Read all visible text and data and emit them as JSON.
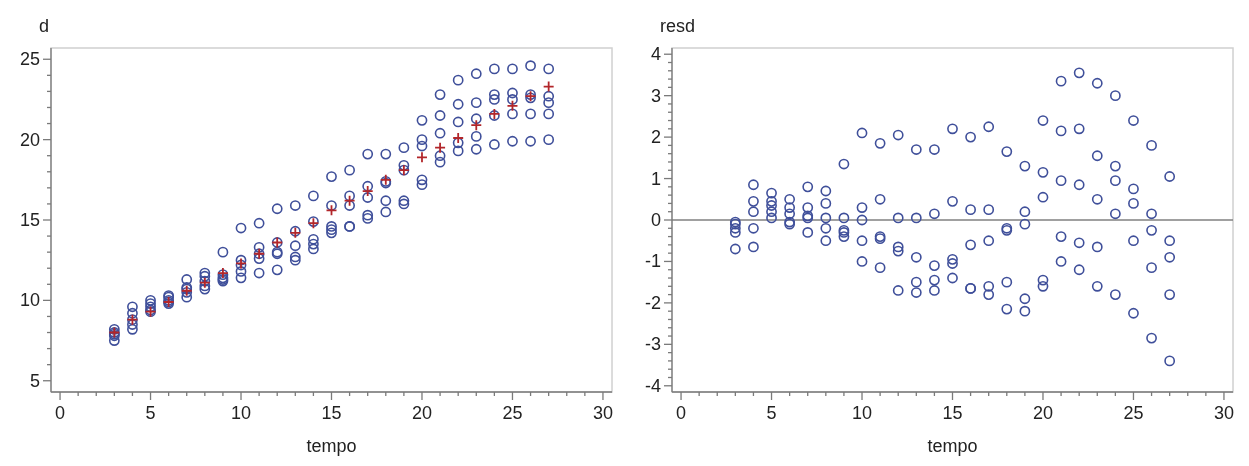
{
  "chart_data": [
    {
      "type": "scatter",
      "xlabel": "tempo",
      "ylabel": "d",
      "xlim": [
        -0.5,
        30.5
      ],
      "ylim": [
        4.3,
        25.7
      ],
      "xticks": [
        0,
        {
          "value": 1,
          "label": null
        },
        {
          "value": 2,
          "label": null
        },
        {
          "value": 3,
          "label": null
        },
        {
          "value": 4,
          "label": null
        },
        5,
        {
          "value": 6,
          "label": null
        },
        {
          "value": 7,
          "label": null
        },
        {
          "value": 8,
          "label": null
        },
        {
          "value": 9,
          "label": null
        },
        10,
        {
          "value": 11,
          "label": null
        },
        {
          "value": 12,
          "label": null
        },
        {
          "value": 13,
          "label": null
        },
        {
          "value": 14,
          "label": null
        },
        15,
        {
          "value": 16,
          "label": null
        },
        {
          "value": 17,
          "label": null
        },
        {
          "value": 18,
          "label": null
        },
        {
          "value": 19,
          "label": null
        },
        20,
        {
          "value": 21,
          "label": null
        },
        {
          "value": 22,
          "label": null
        },
        {
          "value": 23,
          "label": null
        },
        {
          "value": 24,
          "label": null
        },
        25,
        {
          "value": 26,
          "label": null
        },
        {
          "value": 27,
          "label": null
        },
        {
          "value": 28,
          "label": null
        },
        {
          "value": 29,
          "label": null
        },
        30
      ],
      "yticks": [
        5,
        {
          "value": 6,
          "label": null
        },
        {
          "value": 7,
          "label": null
        },
        {
          "value": 8,
          "label": null
        },
        {
          "value": 9,
          "label": null
        },
        10,
        {
          "value": 11,
          "label": null
        },
        {
          "value": 12,
          "label": null
        },
        {
          "value": 13,
          "label": null
        },
        {
          "value": 14,
          "label": null
        },
        15,
        {
          "value": 16,
          "label": null
        },
        {
          "value": 17,
          "label": null
        },
        {
          "value": 18,
          "label": null
        },
        {
          "value": 19,
          "label": null
        },
        20,
        {
          "value": 21,
          "label": null
        },
        {
          "value": 22,
          "label": null
        },
        {
          "value": 23,
          "label": null
        },
        {
          "value": 24,
          "label": null
        },
        25
      ],
      "series": [
        {
          "type": "scatter",
          "marker": "circle",
          "color": "#3f4f9a",
          "x": [
            3,
            3,
            3,
            3,
            3,
            4,
            4,
            4,
            4,
            4,
            5,
            5,
            5,
            5,
            5,
            6,
            6,
            6,
            6,
            6,
            7,
            7,
            7,
            7,
            7,
            8,
            8,
            8,
            8,
            8,
            9,
            9,
            9,
            9,
            9,
            10,
            10,
            10,
            10,
            10,
            11,
            11,
            11,
            11,
            11,
            12,
            12,
            12,
            12,
            12,
            13,
            13,
            13,
            13,
            13,
            14,
            14,
            14,
            14,
            14,
            15,
            15,
            15,
            15,
            15,
            16,
            16,
            16,
            16,
            16,
            17,
            17,
            17,
            17,
            17,
            18,
            18,
            18,
            18,
            18,
            19,
            19,
            19,
            19,
            19,
            20,
            20,
            20,
            20,
            20,
            21,
            21,
            21,
            21,
            21,
            22,
            22,
            22,
            22,
            22,
            23,
            23,
            23,
            23,
            23,
            24,
            24,
            24,
            24,
            24,
            25,
            25,
            25,
            25,
            25,
            26,
            26,
            26,
            26,
            26,
            27,
            27,
            27,
            27,
            27
          ],
          "values": [
            8.2,
            8.0,
            7.9,
            7.8,
            7.5,
            9.6,
            9.2,
            8.8,
            8.5,
            8.2,
            10.0,
            9.8,
            9.6,
            9.4,
            9.3,
            10.3,
            10.2,
            10.0,
            9.9,
            9.8,
            11.3,
            10.8,
            10.7,
            10.5,
            10.2,
            11.7,
            11.5,
            11.2,
            10.9,
            10.7,
            13.0,
            11.6,
            11.4,
            11.3,
            11.2,
            14.5,
            12.5,
            12.2,
            11.8,
            11.4,
            14.8,
            13.3,
            12.9,
            12.6,
            11.7,
            15.7,
            13.6,
            13.0,
            12.9,
            11.9,
            15.9,
            14.3,
            13.4,
            12.7,
            12.5,
            16.5,
            14.9,
            13.8,
            13.5,
            13.2,
            17.7,
            15.9,
            14.6,
            14.4,
            14.2,
            18.1,
            16.5,
            15.9,
            14.6,
            14.6,
            19.1,
            17.1,
            16.4,
            15.3,
            15.1,
            19.1,
            17.4,
            17.3,
            16.2,
            15.5,
            19.5,
            18.4,
            18.1,
            16.2,
            16.0,
            21.2,
            20.0,
            19.6,
            17.5,
            17.2,
            22.8,
            21.5,
            20.4,
            19.0,
            18.6,
            23.7,
            22.2,
            21.1,
            19.8,
            19.3,
            24.1,
            22.3,
            21.3,
            20.2,
            19.4,
            24.4,
            22.8,
            22.5,
            21.5,
            19.7,
            24.4,
            22.9,
            22.5,
            21.6,
            19.9,
            24.6,
            22.8,
            22.6,
            21.6,
            19.9,
            24.4,
            22.7,
            22.3,
            21.6,
            20.0
          ]
        },
        {
          "marker": "cross",
          "color": "#b2262a",
          "x": [
            3,
            4,
            5,
            6,
            7,
            8,
            9,
            10,
            11,
            12,
            13,
            14,
            15,
            16,
            17,
            18,
            19,
            20,
            21,
            22,
            23,
            24,
            25,
            26,
            27
          ],
          "values": [
            8.0,
            8.8,
            9.3,
            9.9,
            10.6,
            11.1,
            11.7,
            12.3,
            12.9,
            13.6,
            14.2,
            14.8,
            15.6,
            16.2,
            16.8,
            17.5,
            18.1,
            18.9,
            19.5,
            20.1,
            20.9,
            21.6,
            22.1,
            22.7,
            23.3
          ]
        }
      ]
    },
    {
      "type": "scatter",
      "xlabel": "tempo",
      "ylabel": "resd",
      "xlim": [
        -0.5,
        30.5
      ],
      "ylim": [
        -4.15,
        4.15
      ],
      "xticks": [
        0,
        {
          "value": 1,
          "label": null
        },
        {
          "value": 2,
          "label": null
        },
        {
          "value": 3,
          "label": null
        },
        {
          "value": 4,
          "label": null
        },
        5,
        {
          "value": 6,
          "label": null
        },
        {
          "value": 7,
          "label": null
        },
        {
          "value": 8,
          "label": null
        },
        {
          "value": 9,
          "label": null
        },
        10,
        {
          "value": 11,
          "label": null
        },
        {
          "value": 12,
          "label": null
        },
        {
          "value": 13,
          "label": null
        },
        {
          "value": 14,
          "label": null
        },
        15,
        {
          "value": 16,
          "label": null
        },
        {
          "value": 17,
          "label": null
        },
        {
          "value": 18,
          "label": null
        },
        {
          "value": 19,
          "label": null
        },
        20,
        {
          "value": 21,
          "label": null
        },
        {
          "value": 22,
          "label": null
        },
        {
          "value": 23,
          "label": null
        },
        {
          "value": 24,
          "label": null
        },
        25,
        {
          "value": 26,
          "label": null
        },
        {
          "value": 27,
          "label": null
        },
        {
          "value": 28,
          "label": null
        },
        {
          "value": 29,
          "label": null
        },
        30
      ],
      "yticks": [
        -4,
        {
          "value": -3.8,
          "label": null
        },
        {
          "value": -3.6,
          "label": null
        },
        {
          "value": -3.4,
          "label": null
        },
        {
          "value": -3.2,
          "label": null
        },
        -3,
        {
          "value": -2.8,
          "label": null
        },
        {
          "value": -2.6,
          "label": null
        },
        {
          "value": -2.4,
          "label": null
        },
        {
          "value": -2.2,
          "label": null
        },
        -2,
        {
          "value": -1.8,
          "label": null
        },
        {
          "value": -1.6,
          "label": null
        },
        {
          "value": -1.4,
          "label": null
        },
        {
          "value": -1.2,
          "label": null
        },
        -1,
        {
          "value": -0.8,
          "label": null
        },
        {
          "value": -0.6,
          "label": null
        },
        {
          "value": -0.4,
          "label": null
        },
        {
          "value": -0.2,
          "label": null
        },
        0,
        {
          "value": 0.2,
          "label": null
        },
        {
          "value": 0.4,
          "label": null
        },
        {
          "value": 0.6,
          "label": null
        },
        {
          "value": 0.8,
          "label": null
        },
        1,
        {
          "value": 1.2,
          "label": null
        },
        {
          "value": 1.4,
          "label": null
        },
        {
          "value": 1.6,
          "label": null
        },
        {
          "value": 1.8,
          "label": null
        },
        2,
        {
          "value": 2.2,
          "label": null
        },
        {
          "value": 2.4,
          "label": null
        },
        {
          "value": 2.6,
          "label": null
        },
        {
          "value": 2.8,
          "label": null
        },
        3,
        {
          "value": 3.2,
          "label": null
        },
        {
          "value": 3.4,
          "label": null
        },
        {
          "value": 3.6,
          "label": null
        },
        {
          "value": 3.8,
          "label": null
        },
        4
      ],
      "ref_lines": [
        {
          "axis": "y",
          "value": 0,
          "color": "#808080"
        }
      ],
      "series": [
        {
          "type": "scatter",
          "marker": "circle",
          "color": "#3f4f9a",
          "x": [
            3,
            3,
            3,
            3,
            3,
            4,
            4,
            4,
            4,
            4,
            5,
            5,
            5,
            5,
            5,
            6,
            6,
            6,
            6,
            6,
            7,
            7,
            7,
            7,
            7,
            8,
            8,
            8,
            8,
            8,
            9,
            9,
            9,
            9,
            9,
            10,
            10,
            10,
            10,
            10,
            11,
            11,
            11,
            11,
            11,
            12,
            12,
            12,
            12,
            12,
            13,
            13,
            13,
            13,
            13,
            14,
            14,
            14,
            14,
            14,
            15,
            15,
            15,
            15,
            15,
            16,
            16,
            16,
            16,
            16,
            17,
            17,
            17,
            17,
            17,
            18,
            18,
            18,
            18,
            18,
            19,
            19,
            19,
            19,
            19,
            20,
            20,
            20,
            20,
            20,
            21,
            21,
            21,
            21,
            21,
            22,
            22,
            22,
            22,
            22,
            23,
            23,
            23,
            23,
            23,
            24,
            24,
            24,
            24,
            24,
            25,
            25,
            25,
            25,
            25,
            26,
            26,
            26,
            26,
            26,
            27,
            27,
            27,
            27,
            27
          ],
          "values": [
            -0.05,
            -0.1,
            -0.2,
            -0.3,
            -0.7,
            0.85,
            0.45,
            0.2,
            -0.2,
            -0.65,
            0.65,
            0.45,
            0.35,
            0.2,
            0.05,
            0.5,
            0.3,
            0.15,
            -0.05,
            -0.1,
            0.8,
            0.3,
            0.1,
            0.05,
            -0.3,
            0.7,
            0.4,
            0.05,
            -0.2,
            -0.5,
            1.35,
            0.05,
            -0.25,
            -0.3,
            -0.4,
            2.1,
            0.3,
            0.0,
            -0.5,
            -1.0,
            1.85,
            0.5,
            -0.4,
            -0.45,
            -1.15,
            2.05,
            0.05,
            -0.65,
            -0.75,
            -1.7,
            1.7,
            0.05,
            -0.9,
            -1.5,
            -1.75,
            1.7,
            0.15,
            -1.1,
            -1.45,
            -1.7,
            2.2,
            0.45,
            -0.95,
            -1.05,
            -1.4,
            2.0,
            0.25,
            -0.6,
            -1.65,
            -1.65,
            2.25,
            0.25,
            -0.5,
            -1.6,
            -1.8,
            1.65,
            -0.2,
            -0.25,
            -1.5,
            -2.15,
            1.3,
            0.2,
            -0.1,
            -1.9,
            -2.2,
            2.4,
            1.15,
            0.55,
            -1.45,
            -1.6,
            3.35,
            2.15,
            0.95,
            -0.4,
            -1.0,
            3.55,
            2.2,
            0.85,
            -0.55,
            -1.2,
            3.3,
            1.55,
            0.5,
            -0.65,
            -1.6,
            3.0,
            1.3,
            0.95,
            0.15,
            -1.8,
            2.4,
            0.75,
            0.4,
            -0.5,
            -2.25,
            1.8,
            0.15,
            -0.25,
            -1.15,
            -2.85,
            1.05,
            -0.5,
            -0.9,
            -1.8,
            -3.4
          ]
        }
      ]
    }
  ]
}
